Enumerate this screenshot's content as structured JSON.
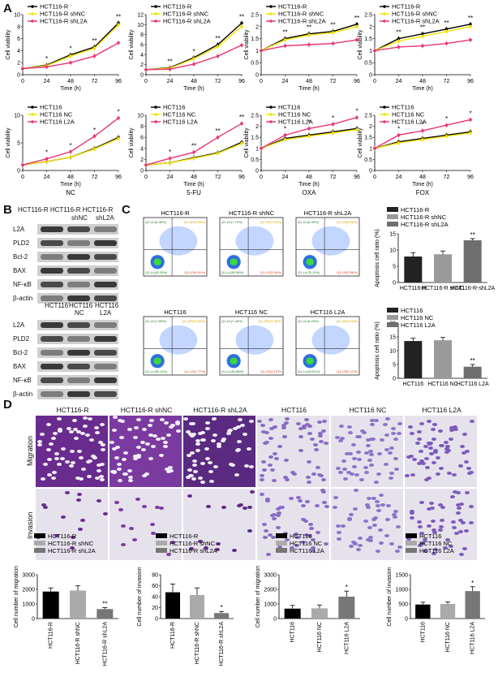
{
  "letters": {
    "A": "A",
    "B": "B",
    "C": "C",
    "D": "D"
  },
  "lines": {
    "top_legend": [
      "HCT116-R",
      "HCT116-R shNC",
      "HCT116-R shL2A"
    ],
    "bot_legend": [
      "HCT116",
      "HCT116 NC",
      "HCT116 L2A"
    ],
    "ylabel": "Cell viability",
    "xlabel": "Time (h)",
    "xticks": [
      "0",
      "24",
      "48",
      "72",
      "96"
    ],
    "drugs": [
      "NC",
      "5-FU",
      "OXA",
      "FOX"
    ]
  },
  "chart_data": [
    {
      "type": "line",
      "x": [
        0,
        24,
        48,
        72,
        96
      ],
      "series": [
        {
          "name": "HCT116-R",
          "values": [
            1,
            1.6,
            3.3,
            4.6,
            8.6
          ]
        },
        {
          "name": "HCT116-R shNC",
          "values": [
            1,
            1.5,
            3.1,
            4.4,
            8.3
          ]
        },
        {
          "name": "HCT116-R shL2A",
          "values": [
            1,
            1.3,
            2.0,
            3.1,
            5.3
          ]
        }
      ],
      "ylim": [
        0,
        10
      ],
      "yticks": [
        0,
        2,
        4,
        6,
        8,
        10
      ],
      "annot": [
        "*",
        "*",
        "**",
        "**"
      ]
    },
    {
      "type": "line",
      "x": [
        0,
        24,
        48,
        72,
        96
      ],
      "series": [
        {
          "name": "HCT116-R",
          "values": [
            1,
            1.4,
            3.4,
            6.0,
            10.3
          ]
        },
        {
          "name": "HCT116-R shNC",
          "values": [
            1,
            1.3,
            3.2,
            5.6,
            9.6
          ]
        },
        {
          "name": "HCT116-R shL2A",
          "values": [
            1,
            1.1,
            2.1,
            3.7,
            5.9
          ]
        }
      ],
      "ylim": [
        0,
        12
      ],
      "yticks": [
        0,
        2,
        4,
        6,
        8,
        10,
        12
      ],
      "annot": [
        "**",
        "*",
        "**",
        "**"
      ]
    },
    {
      "type": "line",
      "x": [
        0,
        24,
        48,
        72,
        96
      ],
      "series": [
        {
          "name": "HCT116-R",
          "values": [
            1,
            1.5,
            1.7,
            1.8,
            2.1
          ]
        },
        {
          "name": "HCT116-R shNC",
          "values": [
            1,
            1.45,
            1.65,
            1.75,
            2.0
          ]
        },
        {
          "name": "HCT116-R shL2A",
          "values": [
            1,
            1.2,
            1.25,
            1.3,
            1.45
          ]
        }
      ],
      "ylim": [
        0,
        2.5
      ],
      "yticks": [
        0,
        0.5,
        1.0,
        1.5,
        2.0,
        2.5
      ],
      "annot": [
        "**",
        "**",
        "**",
        "**"
      ]
    },
    {
      "type": "line",
      "x": [
        0,
        24,
        48,
        72,
        96
      ],
      "series": [
        {
          "name": "HCT116-R",
          "values": [
            1,
            1.5,
            1.7,
            1.9,
            2.1
          ]
        },
        {
          "name": "HCT116-R shNC",
          "values": [
            1,
            1.4,
            1.6,
            1.8,
            2.0
          ]
        },
        {
          "name": "HCT116-R shL2A",
          "values": [
            1,
            1.15,
            1.2,
            1.3,
            1.45
          ]
        }
      ],
      "ylim": [
        0,
        2.5
      ],
      "yticks": [
        0,
        0.5,
        1.0,
        1.5,
        2.0,
        2.5
      ],
      "annot": [
        "**",
        "**",
        "**",
        "**"
      ]
    },
    {
      "type": "line",
      "x": [
        0,
        24,
        48,
        72,
        96
      ],
      "series": [
        {
          "name": "HCT116",
          "values": [
            1,
            1.6,
            2.4,
            4.0,
            6.0
          ]
        },
        {
          "name": "HCT116 NC",
          "values": [
            1,
            1.6,
            2.4,
            3.9,
            5.8
          ]
        },
        {
          "name": "HCT116 L2A",
          "values": [
            1,
            2.1,
            3.4,
            6.2,
            9.5
          ]
        }
      ],
      "ylim": [
        0,
        10
      ],
      "yticks": [
        0,
        5,
        10
      ],
      "annot": [
        "*",
        "*",
        "*",
        "*"
      ]
    },
    {
      "type": "line",
      "x": [
        0,
        24,
        48,
        72,
        96
      ],
      "series": [
        {
          "name": "HCT116",
          "values": [
            1,
            1.4,
            2.3,
            3.2,
            5.1
          ]
        },
        {
          "name": "HCT116 NC",
          "values": [
            1,
            1.4,
            2.2,
            3.1,
            4.9
          ]
        },
        {
          "name": "HCT116 L2A",
          "values": [
            1,
            2.2,
            3.3,
            6.0,
            8.5
          ]
        }
      ],
      "ylim": [
        0,
        10
      ],
      "yticks": [
        0,
        2,
        4,
        6,
        8,
        10
      ],
      "annot": [
        "*",
        "**",
        "**",
        "**"
      ]
    },
    {
      "type": "line",
      "x": [
        0,
        24,
        48,
        72,
        96
      ],
      "series": [
        {
          "name": "HCT116",
          "values": [
            1,
            1.45,
            1.6,
            1.75,
            1.9
          ]
        },
        {
          "name": "HCT116 NC",
          "values": [
            1,
            1.4,
            1.55,
            1.7,
            1.85
          ]
        },
        {
          "name": "HCT116 L2A",
          "values": [
            1,
            1.6,
            1.9,
            2.1,
            2.4
          ]
        }
      ],
      "ylim": [
        0,
        2.5
      ],
      "yticks": [
        0,
        0.5,
        1.0,
        1.5,
        2.0,
        2.5
      ],
      "annot": [
        "*",
        "*",
        "*",
        "*"
      ]
    },
    {
      "type": "line",
      "x": [
        0,
        24,
        48,
        72,
        96
      ],
      "series": [
        {
          "name": "HCT116",
          "values": [
            1,
            1.3,
            1.45,
            1.6,
            1.75
          ]
        },
        {
          "name": "HCT116 NC",
          "values": [
            1,
            1.25,
            1.4,
            1.55,
            1.7
          ]
        },
        {
          "name": "HCT116 L2A",
          "values": [
            1,
            1.6,
            1.8,
            2.05,
            2.3
          ]
        }
      ],
      "ylim": [
        0,
        2.5
      ],
      "yticks": [
        0,
        0.5,
        1.0,
        1.5,
        2.0,
        2.5
      ],
      "annot": [
        "*",
        "*",
        "*",
        "*"
      ]
    },
    {
      "type": "bar",
      "categories": [
        "HCT116-R",
        "HCT116-R shNC",
        "HCT116-R-shL2A"
      ],
      "values": [
        8,
        8.7,
        13
      ],
      "errors": [
        1.2,
        1.0,
        0.5
      ],
      "ylim": [
        0,
        15
      ],
      "yticks": [
        0,
        5,
        10,
        15
      ],
      "ylabel": "Apoptosis cell ratio (%)",
      "legend": [
        "HCT116-R",
        "HCT116-R shNC",
        "HCT116-R shL2A"
      ],
      "annot": [
        "",
        "",
        "**"
      ]
    },
    {
      "type": "bar",
      "categories": [
        "HCT116",
        "HCT116 NC",
        "HCT116 L2A"
      ],
      "values": [
        13.5,
        13.8,
        4.2
      ],
      "errors": [
        1.0,
        1.0,
        0.8
      ],
      "ylim": [
        0,
        20
      ],
      "yticks": [
        0,
        5,
        10,
        15,
        20
      ],
      "ylabel": "Apoptosis cell ratio (%)",
      "legend": [
        "HCT116",
        "HCT116 NC",
        "HCT116 L2A"
      ],
      "annot": [
        "",
        "",
        "**"
      ]
    },
    {
      "type": "bar",
      "categories": [
        "HCT116-R",
        "HCT116-R shNC",
        "HCT116-R shL2A"
      ],
      "values": [
        1850,
        1920,
        650
      ],
      "errors": [
        250,
        320,
        100
      ],
      "ylim": [
        0,
        3000
      ],
      "yticks": [
        0,
        1000,
        2000,
        3000
      ],
      "ylabel": "Cell number of migration",
      "legend": [
        "HCT116-R",
        "HCT116-R shNC",
        "HCT116-R shL2A"
      ],
      "annot": [
        "",
        "",
        "**"
      ]
    },
    {
      "type": "bar",
      "categories": [
        "HCT116-R",
        "HCT116-R shNC",
        "HCT116-R shL2A"
      ],
      "values": [
        48,
        43,
        10
      ],
      "errors": [
        15,
        13,
        3
      ],
      "ylim": [
        0,
        80
      ],
      "yticks": [
        0,
        20,
        40,
        60,
        80
      ],
      "ylabel": "Cell number of invasion",
      "legend": [
        "HCT116-R",
        "HCT116-R shNC",
        "HCT116-R shL2A"
      ],
      "annot": [
        "",
        "",
        "*"
      ]
    },
    {
      "type": "bar",
      "categories": [
        "HCT116",
        "HCT116 NC",
        "HCT116 L2A"
      ],
      "values": [
        680,
        700,
        1500
      ],
      "errors": [
        220,
        230,
        380
      ],
      "ylim": [
        0,
        3000
      ],
      "yticks": [
        0,
        1000,
        2000,
        3000
      ],
      "ylabel": "Cell number of migration",
      "legend": [
        "HCT116",
        "HCT116 NC",
        "HCT116 L2A"
      ],
      "annot": [
        "",
        "",
        "*"
      ]
    },
    {
      "type": "bar",
      "categories": [
        "HCT116",
        "HCT116 NC",
        "HCT116 L2A"
      ],
      "values": [
        480,
        500,
        940
      ],
      "errors": [
        80,
        70,
        150
      ],
      "ylim": [
        0,
        1500
      ],
      "yticks": [
        0,
        500,
        1000,
        1500
      ],
      "ylabel": "Cell number of invasion",
      "legend": [
        "HCT116",
        "HCT116 NC",
        "HCT116 L2A"
      ],
      "annot": [
        "",
        "",
        "*"
      ]
    }
  ],
  "western": {
    "top_header": "HCT116-R HCT116-R HCT116-R",
    "top_sub": [
      "shNC",
      "shL2A"
    ],
    "top_rows": [
      "L2A",
      "PLD2",
      "Bcl-2",
      "BAX",
      "NF-κB",
      "β-actin"
    ],
    "bot_header": [
      "HCT116",
      "HCT116",
      "HCT116"
    ],
    "bot_sub": [
      "NC",
      "L2A"
    ],
    "bot_rows": [
      "L2A",
      "PLD2",
      "Bcl-2",
      "BAX",
      "NF-κB",
      "β-actin"
    ]
  },
  "flow": {
    "titles_top": [
      "HCT116-R",
      "HCT116-R shNC",
      "HCT116-R shL2A"
    ],
    "titles_bot": [
      "HCT116",
      "HCT116 NC",
      "HCT116 L2A"
    ],
    "q_top": [
      {
        "ul": "Q1-UL(6.48%)",
        "ur": "Q1-UR(1.09%)",
        "ll": "Q1-LL(83.35%)",
        "lr": "Q1-LR(6.61%)"
      },
      {
        "ul": "Q1-UL(7.73%)",
        "ur": "Q1-UR(7.53%)",
        "ll": "Q1-LL(83.58%)",
        "lr": "Q1-LR(2.99%)"
      },
      {
        "ul": "Q1-UL(6.28%)",
        "ur": "Q1-UR(8.05%)",
        "ll": "Q1-LL(76.10%)",
        "lr": "Q1-LR(2.56%)"
      }
    ],
    "q_bot": [
      {
        "ul": "Q1-UL(7.85%)",
        "ur": "Q1-UR(10.39%)",
        "ll": "Q1-LL(80.11%)",
        "lr": "Q1-LR(1.77%)"
      },
      {
        "ul": "Q1-UL(7.48%)",
        "ur": "Q1-UR(10.35%)",
        "ll": "Q1-LL(80.86%)",
        "lr": "Q1-LR(2.13%)"
      },
      {
        "ul": "Q1-UL(6.34%)",
        "ur": "Q1-UR(3.02%)",
        "ll": "Q1-LL(90.51%)",
        "lr": "Q1-LR(0.12%)"
      }
    ],
    "ticks": [
      "10⁰",
      "10¹",
      "10²",
      "10³",
      "10⁴",
      "10⁵"
    ]
  },
  "micro": {
    "cols": [
      "HCT116-R",
      "HCT116-R shNC",
      "HCT116-R shL2A",
      "HCT116",
      "HCT116 NC",
      "HCT116 L2A"
    ],
    "rows": [
      "Migration",
      "Invasion"
    ]
  },
  "colors": {
    "black": "#000000",
    "yellow": "#f2e200",
    "pink": "#e8337a",
    "grey": "#aaaaaa",
    "darkgrey": "#555555",
    "lightgrey": "#c8c8c8"
  }
}
